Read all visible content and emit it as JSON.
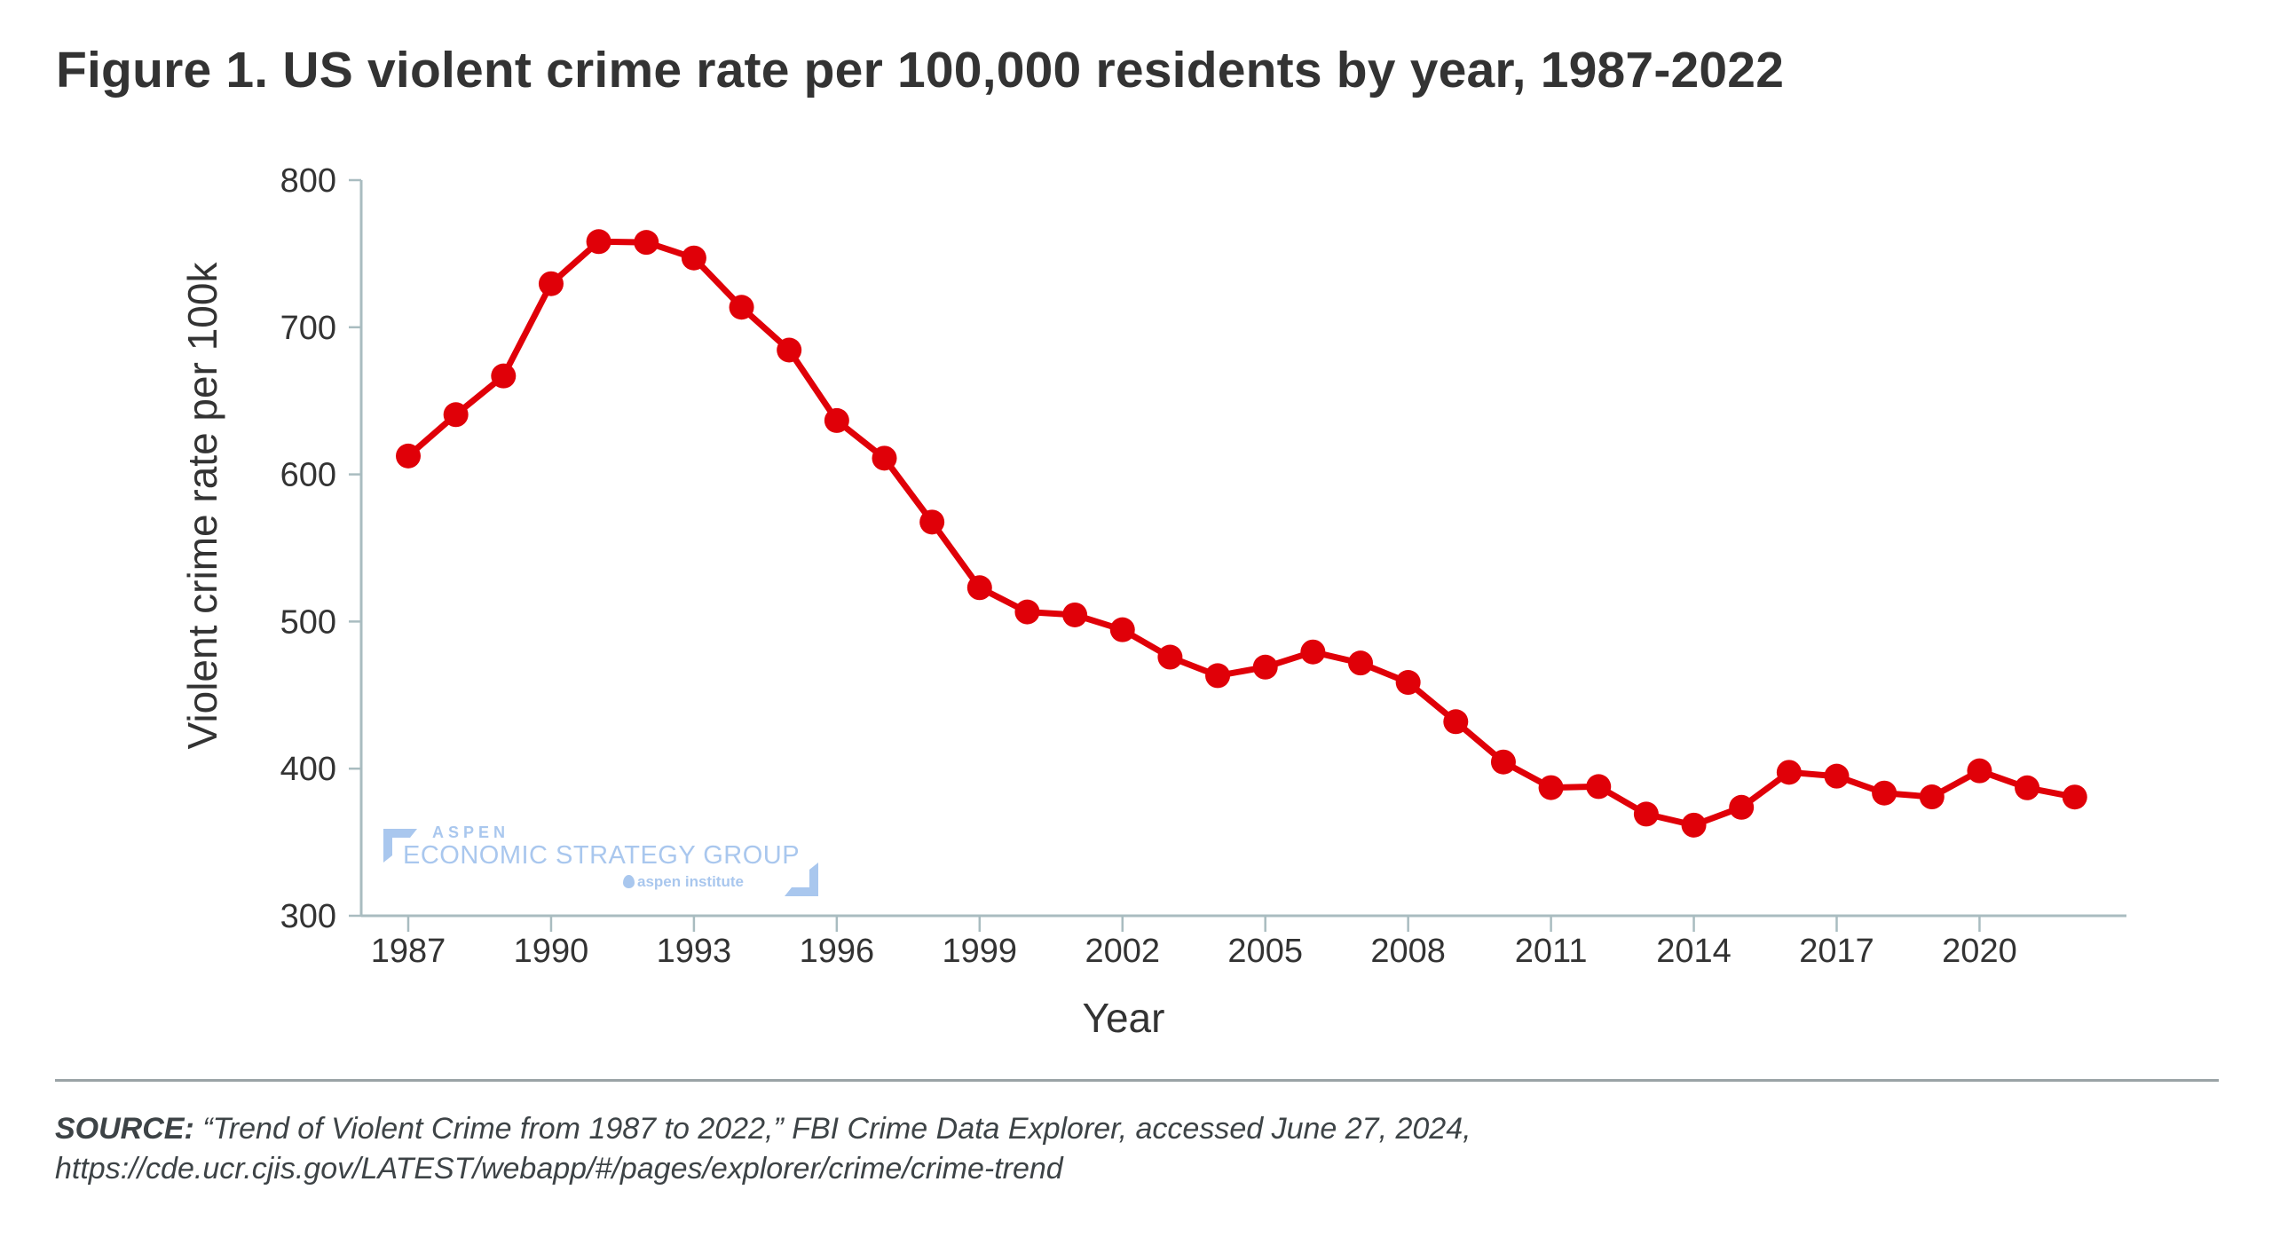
{
  "title": "Figure 1. US violent crime rate per 100,000 residents by year, 1987-2022",
  "watermark": {
    "line1": "ASPEN",
    "line2": "ECONOMIC STRATEGY GROUP",
    "line3": "aspen institute",
    "color": "#a9c7ee"
  },
  "source": {
    "label": "SOURCE:",
    "text": " “Trend of Violent Crime from 1987 to 2022,” FBI Crime Data Explorer, accessed June 27, 2024,",
    "url": "https://cde.ucr.cjis.gov/LATEST/webapp/#/pages/explorer/crime/crime-trend"
  },
  "colors": {
    "series": "#e00008",
    "axis": "#a9bcc0",
    "text": "#333333"
  },
  "chart_data": {
    "type": "line",
    "title": "Figure 1. US violent crime rate per 100,000 residents by year, 1987-2022",
    "xlabel": "Year",
    "ylabel": "Violent crime rate per 100k",
    "xlim": [
      1987,
      2022
    ],
    "ylim": [
      300,
      800
    ],
    "grid": false,
    "legend": "none",
    "x_ticks": [
      1987,
      1990,
      1993,
      1996,
      1999,
      2002,
      2005,
      2008,
      2011,
      2014,
      2017,
      2020
    ],
    "y_ticks": [
      300,
      400,
      500,
      600,
      700,
      800
    ],
    "series": [
      {
        "name": "Violent crime rate per 100k",
        "x": [
          1987,
          1988,
          1989,
          1990,
          1991,
          1992,
          1993,
          1994,
          1995,
          1996,
          1997,
          1998,
          1999,
          2000,
          2001,
          2002,
          2003,
          2004,
          2005,
          2006,
          2007,
          2008,
          2009,
          2010,
          2011,
          2012,
          2013,
          2014,
          2015,
          2016,
          2017,
          2018,
          2019,
          2020,
          2021,
          2022
        ],
        "values": [
          612.5,
          640.6,
          666.9,
          729.6,
          758.2,
          757.7,
          747.1,
          713.6,
          684.5,
          636.6,
          611.0,
          567.6,
          523.0,
          506.5,
          504.5,
          494.4,
          475.8,
          463.2,
          469.0,
          479.3,
          471.8,
          458.6,
          431.9,
          404.5,
          387.1,
          387.8,
          369.1,
          361.6,
          373.7,
          397.5,
          394.9,
          383.4,
          380.8,
          398.5,
          387.0,
          380.7
        ]
      }
    ]
  }
}
